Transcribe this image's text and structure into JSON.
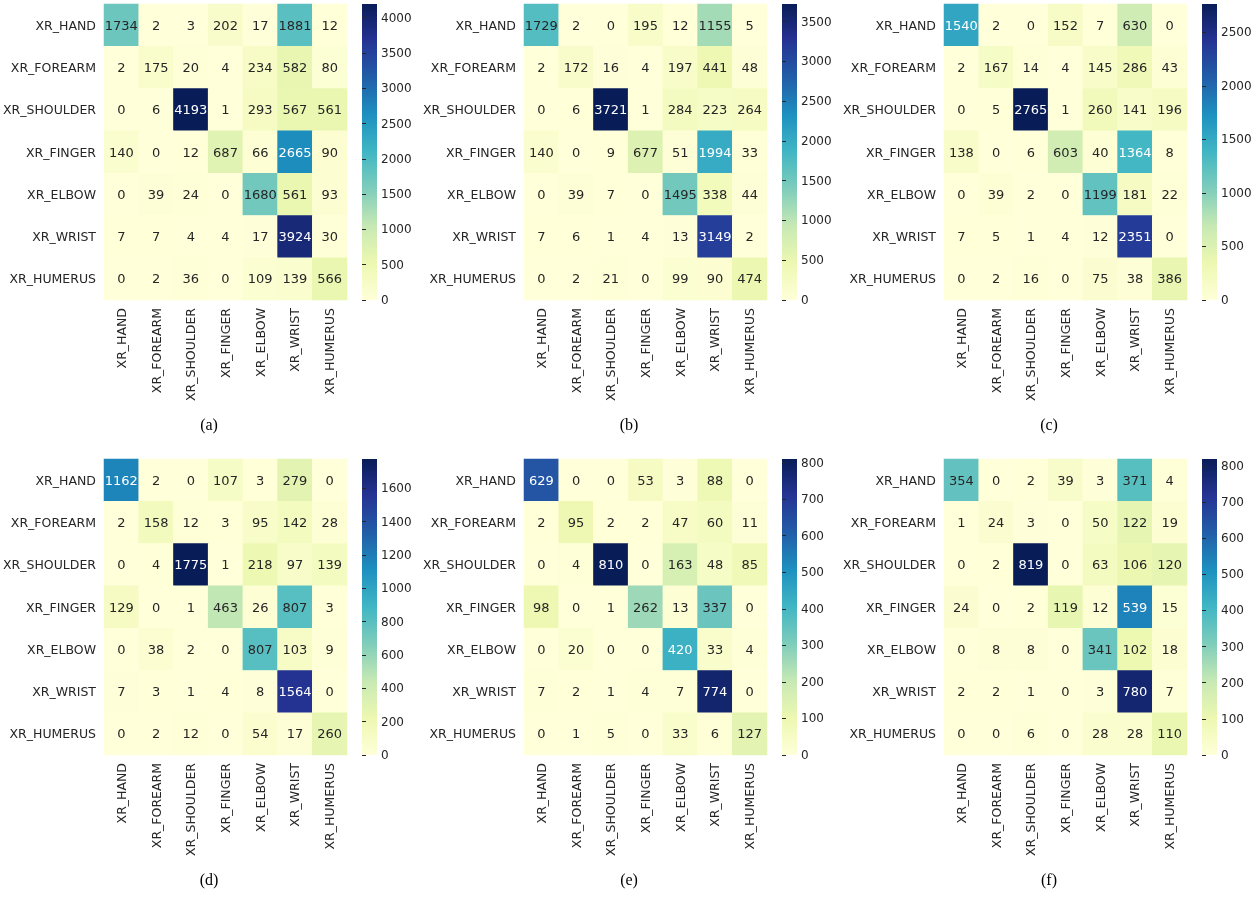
{
  "chart_data": [
    {
      "type": "heatmap",
      "title": "(a)",
      "categories": [
        "XR_HAND",
        "XR_FOREARM",
        "XR_SHOULDER",
        "XR_FINGER",
        "XR_ELBOW",
        "XR_WRIST",
        "XR_HUMERUS"
      ],
      "y_categories": [
        "XR_HAND",
        "XR_FOREARM",
        "XR_SHOULDER",
        "XR_FINGER",
        "XR_ELBOW",
        "XR_WRIST",
        "XR_HUMERUS"
      ],
      "cells": [
        [
          1734,
          2,
          3,
          202,
          17,
          1881,
          12
        ],
        [
          2,
          175,
          20,
          4,
          234,
          582,
          80
        ],
        [
          0,
          6,
          4193,
          1,
          293,
          567,
          561
        ],
        [
          140,
          0,
          12,
          687,
          66,
          2665,
          90
        ],
        [
          0,
          39,
          24,
          0,
          1680,
          561,
          93
        ],
        [
          7,
          7,
          4,
          4,
          17,
          3924,
          30
        ],
        [
          0,
          2,
          36,
          0,
          109,
          139,
          566
        ]
      ],
      "clim": [
        0,
        4193
      ],
      "cticks": [
        0,
        500,
        1000,
        1500,
        2000,
        2500,
        3000,
        3500,
        4000
      ],
      "data_labels": true
    },
    {
      "type": "heatmap",
      "title": "(b)",
      "categories": [
        "XR_HAND",
        "XR_FOREARM",
        "XR_SHOULDER",
        "XR_FINGER",
        "XR_ELBOW",
        "XR_WRIST",
        "XR_HUMERUS"
      ],
      "y_categories": [
        "XR_HAND",
        "XR_FOREARM",
        "XR_SHOULDER",
        "XR_FINGER",
        "XR_ELBOW",
        "XR_WRIST",
        "XR_HUMERUS"
      ],
      "cells": [
        [
          1729,
          2,
          0,
          195,
          12,
          1155,
          5
        ],
        [
          2,
          172,
          16,
          4,
          197,
          441,
          48
        ],
        [
          0,
          6,
          3721,
          1,
          284,
          223,
          264
        ],
        [
          140,
          0,
          9,
          677,
          51,
          1994,
          33
        ],
        [
          0,
          39,
          7,
          0,
          1495,
          338,
          44
        ],
        [
          7,
          6,
          1,
          4,
          13,
          3149,
          2
        ],
        [
          0,
          2,
          21,
          0,
          99,
          90,
          474
        ]
      ],
      "clim": [
        0,
        3721
      ],
      "cticks": [
        0,
        500,
        1000,
        1500,
        2000,
        2500,
        3000,
        3500
      ],
      "data_labels": true
    },
    {
      "type": "heatmap",
      "title": "(c)",
      "categories": [
        "XR_HAND",
        "XR_FOREARM",
        "XR_SHOULDER",
        "XR_FINGER",
        "XR_ELBOW",
        "XR_WRIST",
        "XR_HUMERUS"
      ],
      "y_categories": [
        "XR_HAND",
        "XR_FOREARM",
        "XR_SHOULDER",
        "XR_FINGER",
        "XR_ELBOW",
        "XR_WRIST",
        "XR_HUMERUS"
      ],
      "cells": [
        [
          1540,
          2,
          0,
          152,
          7,
          630,
          0
        ],
        [
          2,
          167,
          14,
          4,
          145,
          286,
          43
        ],
        [
          0,
          5,
          2765,
          1,
          260,
          141,
          196
        ],
        [
          138,
          0,
          6,
          603,
          40,
          1364,
          8
        ],
        [
          0,
          39,
          2,
          0,
          1199,
          181,
          22
        ],
        [
          7,
          5,
          1,
          4,
          12,
          2351,
          0
        ],
        [
          0,
          2,
          16,
          0,
          75,
          38,
          386
        ]
      ],
      "clim": [
        0,
        2765
      ],
      "cticks": [
        0,
        500,
        1000,
        1500,
        2000,
        2500
      ],
      "data_labels": true
    },
    {
      "type": "heatmap",
      "title": "(d)",
      "categories": [
        "XR_HAND",
        "XR_FOREARM",
        "XR_SHOULDER",
        "XR_FINGER",
        "XR_ELBOW",
        "XR_WRIST",
        "XR_HUMERUS"
      ],
      "y_categories": [
        "XR_HAND",
        "XR_FOREARM",
        "XR_SHOULDER",
        "XR_FINGER",
        "XR_ELBOW",
        "XR_WRIST",
        "XR_HUMERUS"
      ],
      "cells": [
        [
          1162,
          2,
          0,
          107,
          3,
          279,
          0
        ],
        [
          2,
          158,
          12,
          3,
          95,
          142,
          28
        ],
        [
          0,
          4,
          1775,
          1,
          218,
          97,
          139
        ],
        [
          129,
          0,
          1,
          463,
          26,
          807,
          3
        ],
        [
          0,
          38,
          2,
          0,
          807,
          103,
          9
        ],
        [
          7,
          3,
          1,
          4,
          8,
          1564,
          0
        ],
        [
          0,
          2,
          12,
          0,
          54,
          17,
          260
        ]
      ],
      "clim": [
        0,
        1775
      ],
      "cticks": [
        0,
        200,
        400,
        600,
        800,
        1000,
        1200,
        1400,
        1600
      ],
      "data_labels": true
    },
    {
      "type": "heatmap",
      "title": "(e)",
      "categories": [
        "XR_HAND",
        "XR_FOREARM",
        "XR_SHOULDER",
        "XR_FINGER",
        "XR_ELBOW",
        "XR_WRIST",
        "XR_HUMERUS"
      ],
      "y_categories": [
        "XR_HAND",
        "XR_FOREARM",
        "XR_SHOULDER",
        "XR_FINGER",
        "XR_ELBOW",
        "XR_WRIST",
        "XR_HUMERUS"
      ],
      "cells": [
        [
          629,
          0,
          0,
          53,
          3,
          88,
          0
        ],
        [
          2,
          95,
          2,
          2,
          47,
          60,
          11
        ],
        [
          0,
          4,
          810,
          0,
          163,
          48,
          85
        ],
        [
          98,
          0,
          1,
          262,
          13,
          337,
          0
        ],
        [
          0,
          20,
          0,
          0,
          420,
          33,
          4
        ],
        [
          7,
          2,
          1,
          4,
          7,
          774,
          0
        ],
        [
          0,
          1,
          5,
          0,
          33,
          6,
          127
        ]
      ],
      "clim": [
        0,
        810
      ],
      "cticks": [
        0,
        100,
        200,
        300,
        400,
        500,
        600,
        700,
        800
      ],
      "data_labels": true
    },
    {
      "type": "heatmap",
      "title": "(f)",
      "categories": [
        "XR_HAND",
        "XR_FOREARM",
        "XR_SHOULDER",
        "XR_FINGER",
        "XR_ELBOW",
        "XR_WRIST",
        "XR_HUMERUS"
      ],
      "y_categories": [
        "XR_HAND",
        "XR_FOREARM",
        "XR_SHOULDER",
        "XR_FINGER",
        "XR_ELBOW",
        "XR_WRIST",
        "XR_HUMERUS"
      ],
      "cells": [
        [
          354,
          0,
          2,
          39,
          3,
          371,
          4
        ],
        [
          1,
          24,
          3,
          0,
          50,
          122,
          19
        ],
        [
          0,
          2,
          819,
          0,
          63,
          106,
          120
        ],
        [
          24,
          0,
          2,
          119,
          12,
          539,
          15
        ],
        [
          0,
          8,
          8,
          0,
          341,
          102,
          18
        ],
        [
          2,
          2,
          1,
          0,
          3,
          780,
          7
        ],
        [
          0,
          0,
          6,
          0,
          28,
          28,
          110
        ]
      ],
      "clim": [
        0,
        819
      ],
      "cticks": [
        0,
        100,
        200,
        300,
        400,
        500,
        600,
        700,
        800
      ],
      "data_labels": true
    }
  ]
}
